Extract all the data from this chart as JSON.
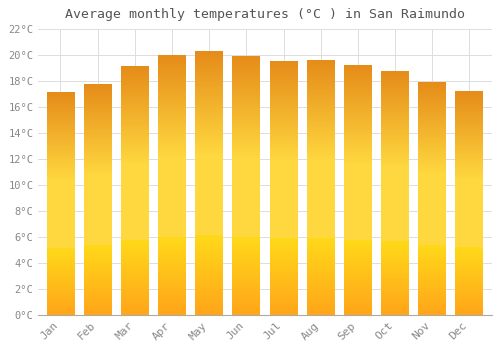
{
  "title": "Average monthly temperatures (°C ) in San Raimundo",
  "months": [
    "Jan",
    "Feb",
    "Mar",
    "Apr",
    "May",
    "Jun",
    "Jul",
    "Aug",
    "Sep",
    "Oct",
    "Nov",
    "Dec"
  ],
  "values": [
    17.1,
    17.7,
    19.1,
    20.0,
    20.3,
    19.9,
    19.5,
    19.6,
    19.2,
    18.7,
    17.9,
    17.2
  ],
  "bar_color_top": "#E8820A",
  "bar_color_mid": "#FFCC33",
  "bar_color_bottom": "#FFAA00",
  "background_color": "#FFFFFF",
  "grid_color": "#DDDDDD",
  "text_color": "#888888",
  "title_color": "#555555",
  "ylim": [
    0,
    22
  ],
  "yticks": [
    0,
    2,
    4,
    6,
    8,
    10,
    12,
    14,
    16,
    18,
    20,
    22
  ],
  "bar_width": 0.75
}
